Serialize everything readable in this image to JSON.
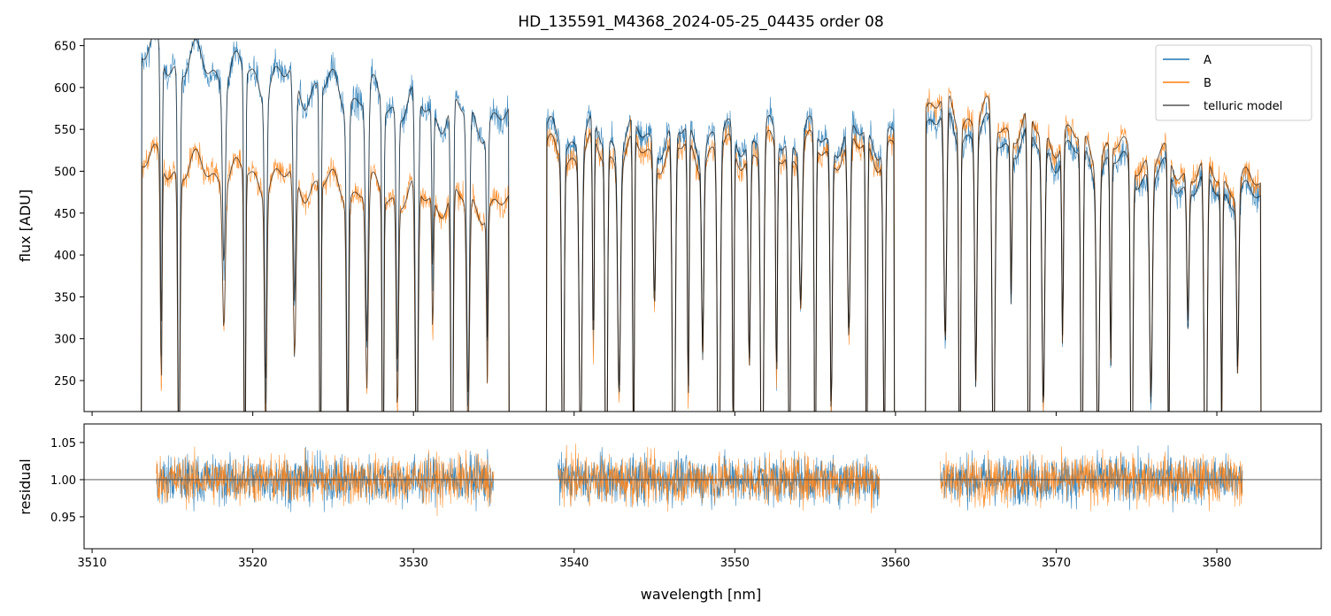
{
  "chart_data": [
    {
      "type": "line",
      "title": "HD_135591_M4368_2024-05-25_04435  order 08",
      "xlabel": "",
      "ylabel": "flux [ADU]",
      "xlim": [
        3509.5,
        3586.5
      ],
      "ylim": [
        213,
        658
      ],
      "yticks": [
        250,
        300,
        350,
        400,
        450,
        500,
        550,
        600,
        650
      ],
      "xticks": [
        3510,
        3520,
        3530,
        3540,
        3550,
        3560,
        3570,
        3580
      ],
      "xtick_labels_shown": false,
      "grid": false,
      "legend": "top-right",
      "segments": [
        {
          "x": [
            3513.0,
            3536.0
          ],
          "A_level": [
            640,
            555
          ],
          "B_level": [
            510,
            455
          ]
        },
        {
          "x": [
            3538.2,
            3560.0
          ],
          "A_level": [
            540,
            540
          ],
          "B_level": [
            520,
            525
          ]
        },
        {
          "x": [
            3561.8,
            3582.8
          ],
          "A_level": [
            560,
            465
          ],
          "B_level": [
            580,
            480
          ]
        }
      ],
      "absorption_lines_nm": [
        3514.3,
        3515.4,
        3518.2,
        3519.5,
        3520.8,
        3522.6,
        3524.2,
        3525.9,
        3527.1,
        3528.1,
        3529.0,
        3530.2,
        3531.2,
        3532.4,
        3533.4,
        3534.6,
        3539.3,
        3540.4,
        3541.2,
        3542.0,
        3542.8,
        3543.7,
        3545.0,
        3546.2,
        3547.1,
        3548.0,
        3549.0,
        3549.9,
        3550.9,
        3551.7,
        3552.6,
        3553.4,
        3554.1,
        3555.0,
        3556.0,
        3557.1,
        3558.2,
        3559.3,
        3563.1,
        3564.0,
        3565.0,
        3566.1,
        3567.2,
        3568.3,
        3569.2,
        3570.4,
        3571.6,
        3572.6,
        3573.4,
        3574.7,
        3575.9,
        3577.0,
        3578.2,
        3579.3,
        3580.3,
        3581.3
      ],
      "series": [
        {
          "name": "A",
          "color": "#1f77b4"
        },
        {
          "name": "B",
          "color": "#ff7f0e"
        },
        {
          "name": "telluric model",
          "color": "#555555"
        }
      ]
    },
    {
      "type": "line",
      "title": "",
      "xlabel": "wavelength [nm]",
      "ylabel": "residual",
      "xlim": [
        3509.5,
        3586.5
      ],
      "ylim": [
        0.907,
        1.075
      ],
      "yticks": [
        0.95,
        1.0,
        1.05
      ],
      "xticks": [
        3510,
        3520,
        3530,
        3540,
        3550,
        3560,
        3570,
        3580
      ],
      "reference_line": 1.0,
      "grid": false,
      "segments": [
        {
          "x": [
            3514.0,
            3535.0
          ]
        },
        {
          "x": [
            3539.0,
            3559.0
          ]
        },
        {
          "x": [
            3562.8,
            3581.6
          ]
        }
      ],
      "series": [
        {
          "name": "",
          "color": "#1f77b4",
          "approx_spread": 0.03
        },
        {
          "name": "",
          "color": "#ff7f0e",
          "approx_spread": 0.03
        }
      ]
    }
  ]
}
